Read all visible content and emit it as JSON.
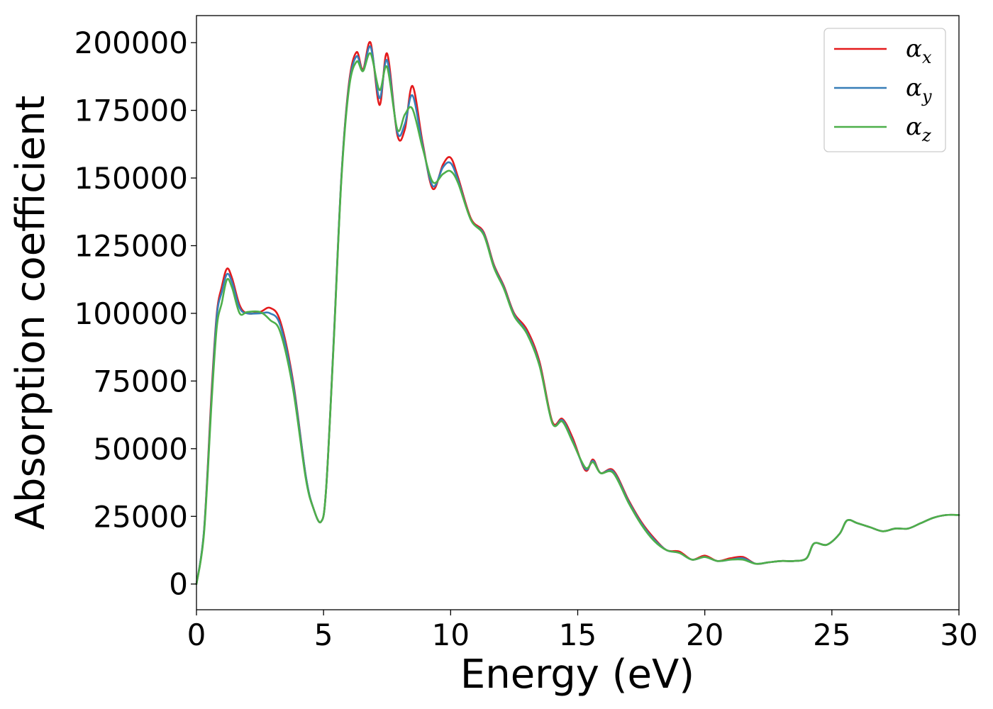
{
  "chart_data": {
    "type": "line",
    "xlabel": "Energy (eV)",
    "ylabel": "Absorption coefficient",
    "xlim": [
      0,
      30
    ],
    "ylim": [
      -9500,
      210000
    ],
    "x_ticks": [
      0,
      5,
      10,
      15,
      20,
      25,
      30
    ],
    "y_ticks": [
      0,
      25000,
      50000,
      75000,
      100000,
      125000,
      150000,
      175000,
      200000
    ],
    "grid": false,
    "legend_position": "top-right",
    "series": [
      {
        "name": "α",
        "subscript": "x",
        "color": "#e41a1c",
        "x": [
          0,
          0.3,
          0.6,
          0.8,
          1.0,
          1.2,
          1.4,
          1.7,
          2.0,
          2.5,
          2.9,
          3.3,
          3.8,
          4.3,
          4.6,
          4.9,
          5.1,
          5.4,
          5.7,
          6.0,
          6.3,
          6.55,
          6.85,
          7.2,
          7.5,
          7.9,
          8.2,
          8.5,
          8.9,
          9.3,
          9.7,
          10.0,
          10.3,
          10.8,
          11.3,
          11.7,
          12.1,
          12.5,
          13.0,
          13.5,
          14.0,
          14.4,
          14.8,
          15.3,
          15.6,
          15.9,
          16.4,
          17.0,
          17.5,
          18.0,
          18.5,
          19.0,
          19.5,
          20.0,
          20.5,
          21.0,
          21.5,
          22.0,
          22.5,
          23.0,
          23.5,
          24.0,
          24.3,
          24.8,
          25.3,
          25.6,
          26.0,
          26.5,
          27.0,
          27.5,
          28.0,
          28.5,
          29.0,
          29.5,
          30.0
        ],
        "y": [
          0,
          20000,
          72000,
          100000,
          110000,
          116500,
          113000,
          103000,
          100000,
          100500,
          102000,
          97000,
          75000,
          40000,
          28000,
          23000,
          35000,
          90000,
          150000,
          185000,
          196500,
          190000,
          200000,
          177000,
          196000,
          166000,
          168000,
          184000,
          163000,
          146000,
          155000,
          157500,
          150000,
          135000,
          130000,
          118000,
          110000,
          100000,
          94000,
          82000,
          60000,
          61000,
          54000,
          42000,
          46000,
          41000,
          42000,
          31000,
          23000,
          17000,
          12500,
          12000,
          9000,
          10500,
          8500,
          9500,
          10000,
          7500,
          8000,
          8500,
          8500,
          9500,
          15000,
          14500,
          18500,
          23500,
          22500,
          21000,
          19500,
          20500,
          20500,
          22500,
          24500,
          25500,
          25500
        ]
      },
      {
        "name": "α",
        "subscript": "y",
        "color": "#377eb8",
        "x": [
          0,
          0.3,
          0.6,
          0.8,
          1.0,
          1.2,
          1.4,
          1.7,
          2.0,
          2.5,
          2.9,
          3.3,
          3.8,
          4.3,
          4.6,
          4.9,
          5.1,
          5.4,
          5.7,
          6.0,
          6.3,
          6.55,
          6.85,
          7.2,
          7.5,
          7.9,
          8.2,
          8.5,
          8.9,
          9.3,
          9.7,
          10.0,
          10.3,
          10.8,
          11.3,
          11.7,
          12.1,
          12.5,
          13.0,
          13.5,
          14.0,
          14.4,
          14.8,
          15.3,
          15.6,
          15.9,
          16.4,
          17.0,
          17.5,
          18.0,
          18.5,
          19.0,
          19.5,
          20.0,
          20.5,
          21.0,
          21.5,
          22.0,
          22.5,
          23.0,
          23.5,
          24.0,
          24.3,
          24.8,
          25.3,
          25.6,
          26.0,
          26.5,
          27.0,
          27.5,
          28.0,
          28.5,
          29.0,
          29.5,
          30.0
        ],
        "y": [
          0,
          20000,
          70000,
          99000,
          108000,
          114500,
          111500,
          102000,
          100000,
          100000,
          100000,
          95500,
          74000,
          40000,
          28000,
          23000,
          35000,
          90000,
          150000,
          184000,
          195000,
          189500,
          198500,
          179500,
          193500,
          167000,
          170000,
          180500,
          162000,
          147000,
          154000,
          155500,
          149000,
          134500,
          129500,
          117500,
          109500,
          99500,
          93000,
          81000,
          59500,
          60500,
          53000,
          42500,
          45500,
          41000,
          41500,
          30500,
          22500,
          16500,
          12500,
          11500,
          9000,
          10000,
          8500,
          9000,
          9500,
          7500,
          8000,
          8500,
          8500,
          9500,
          15000,
          14500,
          18500,
          23500,
          22500,
          21000,
          19500,
          20500,
          20500,
          22500,
          24500,
          25500,
          25500
        ]
      },
      {
        "name": "α",
        "subscript": "z",
        "color": "#4daf4a",
        "x": [
          0,
          0.3,
          0.6,
          0.8,
          1.0,
          1.2,
          1.4,
          1.7,
          2.0,
          2.5,
          2.9,
          3.3,
          3.8,
          4.3,
          4.6,
          4.9,
          5.1,
          5.4,
          5.7,
          6.0,
          6.3,
          6.55,
          6.85,
          7.2,
          7.5,
          7.9,
          8.2,
          8.5,
          8.9,
          9.3,
          9.7,
          10.0,
          10.3,
          10.8,
          11.3,
          11.7,
          12.1,
          12.5,
          13.0,
          13.5,
          14.0,
          14.4,
          14.8,
          15.3,
          15.6,
          15.9,
          16.4,
          17.0,
          17.5,
          18.0,
          18.5,
          19.0,
          19.5,
          20.0,
          20.5,
          21.0,
          21.5,
          22.0,
          22.5,
          23.0,
          23.5,
          24.0,
          24.3,
          24.8,
          25.3,
          25.6,
          26.0,
          26.5,
          27.0,
          27.5,
          28.0,
          28.5,
          29.0,
          29.5,
          30.0
        ],
        "y": [
          0,
          19000,
          68000,
          95000,
          104000,
          112500,
          109500,
          100000,
          100500,
          100500,
          97500,
          93000,
          72000,
          39000,
          28000,
          23000,
          35000,
          89000,
          149000,
          183000,
          193000,
          189500,
          196000,
          182500,
          191000,
          168000,
          173500,
          175500,
          161000,
          148500,
          151500,
          152500,
          148000,
          134500,
          129000,
          117000,
          109000,
          99000,
          92500,
          80500,
          59500,
          60000,
          52500,
          43000,
          45000,
          41000,
          41000,
          30000,
          22000,
          16000,
          12500,
          11500,
          9000,
          10000,
          8500,
          9000,
          9000,
          7500,
          8000,
          8500,
          8500,
          9500,
          15000,
          14500,
          18500,
          23500,
          22500,
          21000,
          19500,
          20500,
          20500,
          22500,
          24500,
          25500,
          25500
        ]
      }
    ]
  }
}
